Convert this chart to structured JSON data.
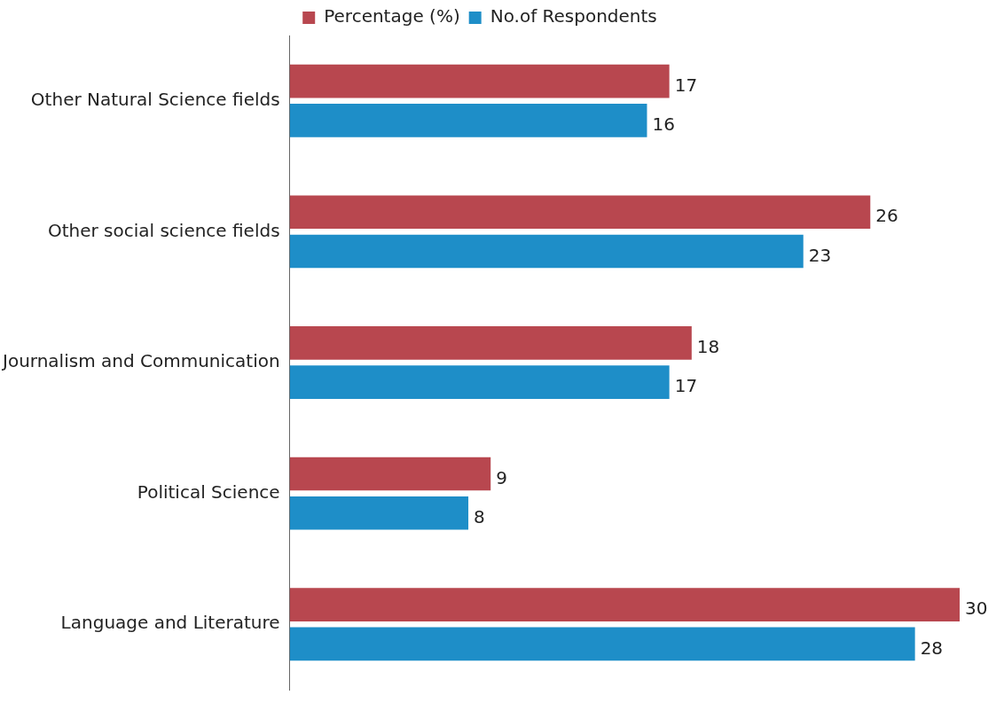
{
  "chart_data": {
    "type": "bar",
    "orientation": "horizontal",
    "categories": [
      "Other Natural Science fields",
      "Other social science fields",
      "Journalism and Communication",
      "Political Science",
      "Language and Literature"
    ],
    "series": [
      {
        "name": "Percentage (%)",
        "color": "#b8474f",
        "values": [
          17,
          26,
          18,
          9,
          30
        ]
      },
      {
        "name": "No.of Respondents",
        "color": "#1e8ec8",
        "values": [
          16,
          23,
          17,
          8,
          28
        ]
      }
    ],
    "data_labels": true,
    "legend": "top",
    "grid": false
  }
}
